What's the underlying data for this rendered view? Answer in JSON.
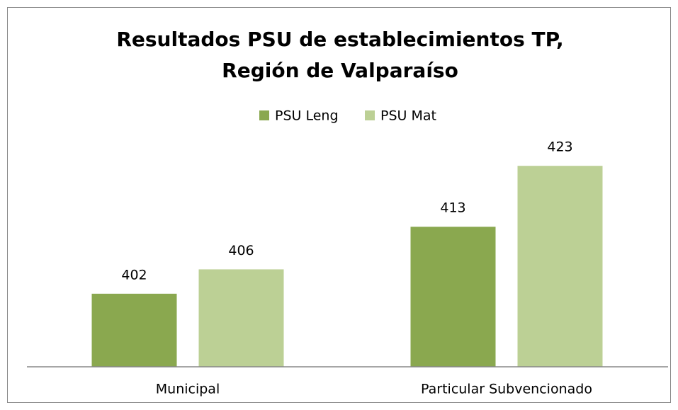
{
  "chart_data": {
    "type": "bar",
    "title": [
      "Resultados PSU de establecimientos TP,",
      "Región de Valparaíso"
    ],
    "categories": [
      "Municipal",
      "Particular Subvencionado"
    ],
    "series": [
      {
        "name": "PSU Leng",
        "color": "#8aa84f",
        "values": [
          402,
          413
        ]
      },
      {
        "name": "PSU Mat",
        "color": "#bcd095",
        "values": [
          406,
          423
        ]
      }
    ],
    "ylim": [
      390,
      425
    ],
    "legend": "top"
  }
}
